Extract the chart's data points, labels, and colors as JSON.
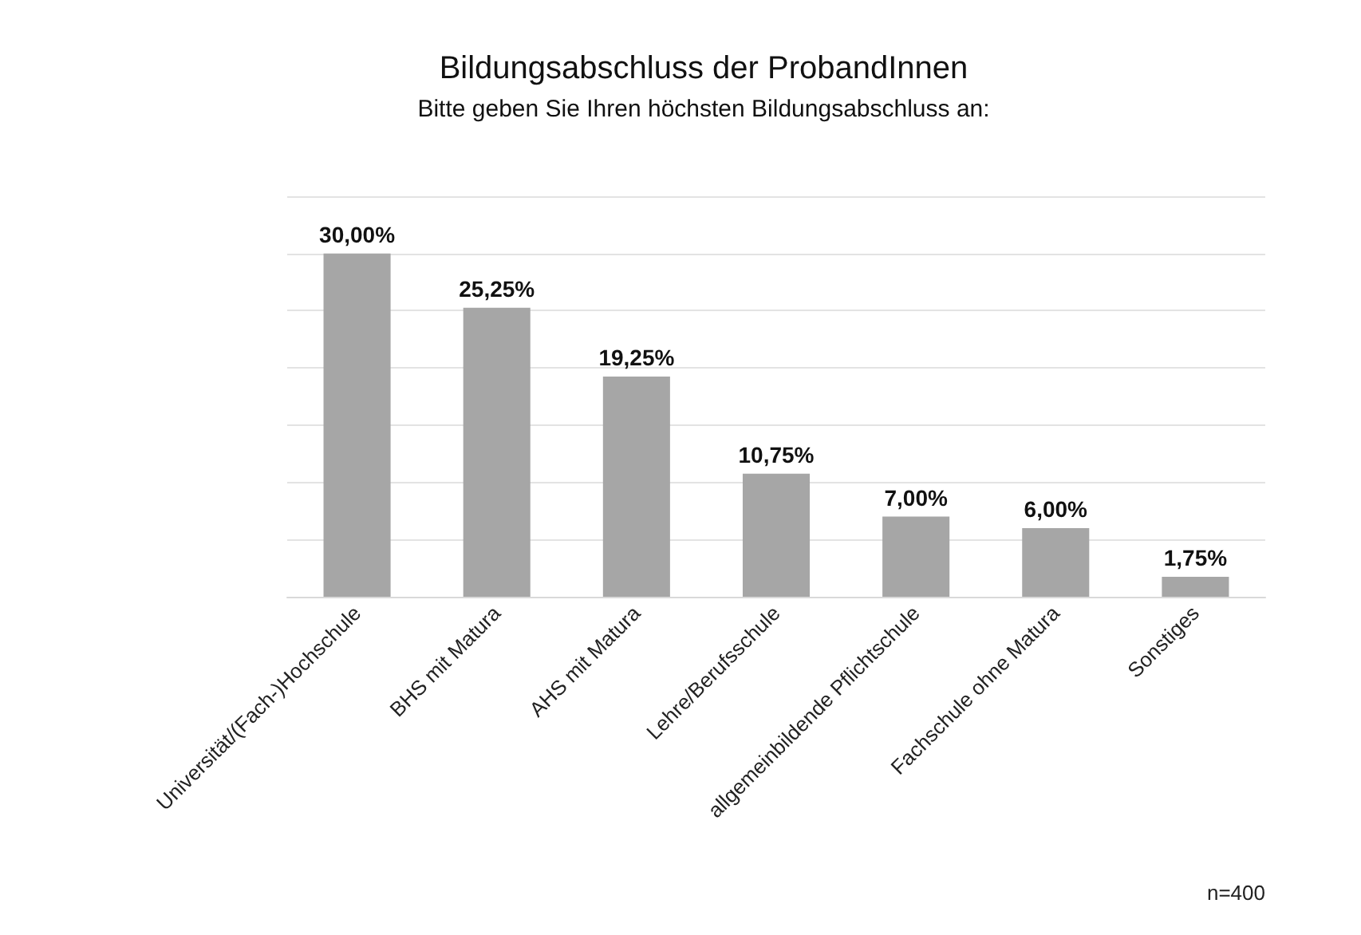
{
  "chart_data": {
    "type": "bar",
    "title": "Bildungsabschluss der ProbandInnen",
    "subtitle": "Bitte geben Sie Ihren höchsten Bildungsabschluss an:",
    "categories": [
      "Universität/(Fach-)Hochschule",
      "BHS mit Matura",
      "AHS mit Matura",
      "Lehre/Berufsschule",
      "allgemeinbildende Pflichtschule",
      "Fachschule ohne Matura",
      "Sonstiges"
    ],
    "values": [
      30,
      25.25,
      19.25,
      10.75,
      7,
      6,
      1.75
    ],
    "value_labels": [
      "30,00%",
      "25,25%",
      "19,25%",
      "10,75%",
      "7,00%",
      "6,00%",
      "1,75%"
    ],
    "color": "#a6a6a6",
    "ylim": [
      0,
      35
    ],
    "yticks": [
      {
        "value": 0,
        "label": null
      },
      {
        "value": 5,
        "label": null
      },
      {
        "value": 10,
        "label": null
      },
      {
        "value": 15,
        "label": null
      },
      {
        "value": 20,
        "label": null
      },
      {
        "value": 25,
        "label": null
      },
      {
        "value": 30,
        "label": null
      },
      {
        "value": 35,
        "label": null
      }
    ],
    "grid": "y",
    "tick_labels": "x",
    "annotations": [
      "n=400"
    ]
  }
}
